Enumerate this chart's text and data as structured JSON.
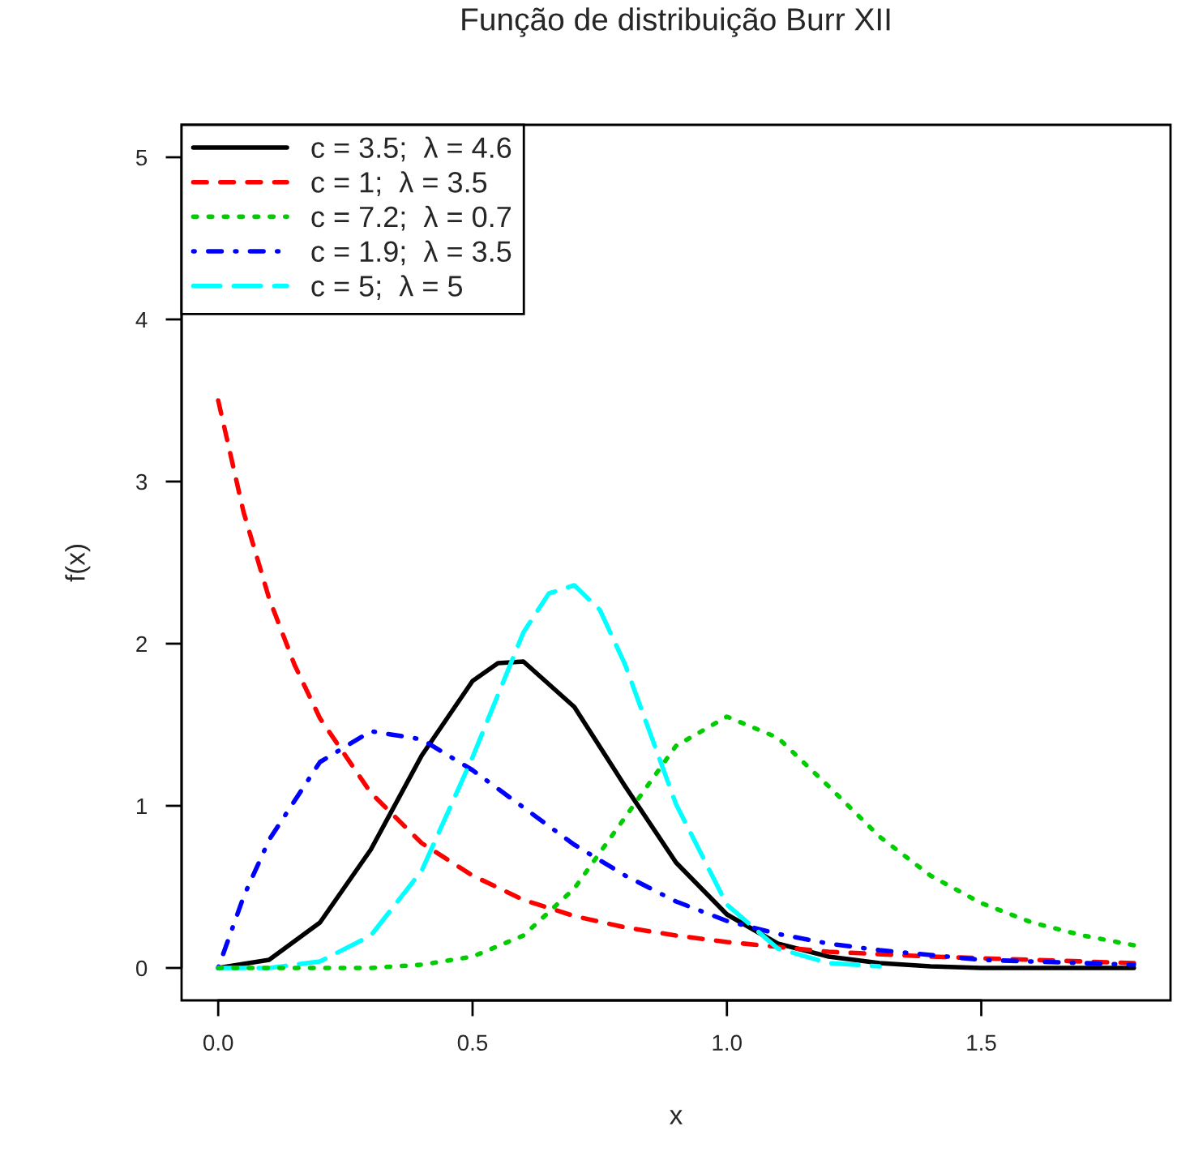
{
  "chart_data": {
    "type": "line",
    "title": "Função de distribuição Burr XII",
    "xlabel": "x",
    "ylabel": "f(x)",
    "xlim": [
      -0.072,
      1.872
    ],
    "ylim": [
      -0.2,
      5.2
    ],
    "xticks": [
      {
        "value": 0,
        "label": "0.0"
      },
      {
        "value": 0.5,
        "label": "0.5"
      },
      {
        "value": 1,
        "label": "1.0"
      },
      {
        "value": 1.5,
        "label": "1.5"
      }
    ],
    "yticks": [
      0,
      1,
      2,
      3,
      4,
      5
    ],
    "grid": false,
    "legend": "top left",
    "marker": "none",
    "series": [
      {
        "name": "c = 3.5;  λ = 4.6",
        "color": "#000000",
        "line_style": "solid",
        "x": [
          0,
          0.1,
          0.2,
          0.3,
          0.4,
          0.5,
          0.55,
          0.6,
          0.7,
          0.8,
          0.9,
          1.0,
          1.1,
          1.2,
          1.3,
          1.4,
          1.5,
          1.6,
          1.7,
          1.8
        ],
        "values": [
          0,
          0.05,
          0.28,
          0.73,
          1.31,
          1.77,
          1.88,
          1.89,
          1.61,
          1.12,
          0.65,
          0.33,
          0.15,
          0.07,
          0.03,
          0.01,
          0.0,
          0.0,
          0.0,
          0.0
        ]
      },
      {
        "name": "c = 1;  λ = 3.5",
        "color": "#ff0000",
        "line_style": "dashed",
        "x": [
          0,
          0.05,
          0.1,
          0.15,
          0.2,
          0.3,
          0.4,
          0.5,
          0.6,
          0.7,
          0.8,
          0.9,
          1.0,
          1.2,
          1.4,
          1.6,
          1.8
        ],
        "values": [
          3.5,
          2.81,
          2.28,
          1.87,
          1.54,
          1.08,
          0.77,
          0.57,
          0.42,
          0.32,
          0.25,
          0.2,
          0.16,
          0.1,
          0.07,
          0.05,
          0.03
        ]
      },
      {
        "name": "c = 7.2;  λ = 0.7",
        "color": "#00cd00",
        "line_style": "dotted",
        "x": [
          0,
          0.3,
          0.4,
          0.5,
          0.6,
          0.7,
          0.8,
          0.9,
          1.0,
          1.1,
          1.2,
          1.3,
          1.4,
          1.5,
          1.6,
          1.7,
          1.8
        ],
        "values": [
          0,
          0.0,
          0.02,
          0.07,
          0.2,
          0.49,
          0.93,
          1.37,
          1.55,
          1.42,
          1.12,
          0.81,
          0.57,
          0.4,
          0.28,
          0.2,
          0.14
        ]
      },
      {
        "name": "c = 1.9;  λ = 3.5",
        "color": "#0000ff",
        "line_style": "dashdot",
        "x": [
          0,
          0.05,
          0.1,
          0.2,
          0.3,
          0.4,
          0.5,
          0.6,
          0.7,
          0.8,
          0.9,
          1.0,
          1.1,
          1.2,
          1.3,
          1.4,
          1.5,
          1.6,
          1.7,
          1.8
        ],
        "values": [
          0,
          0.44,
          0.79,
          1.27,
          1.46,
          1.41,
          1.22,
          0.99,
          0.76,
          0.57,
          0.41,
          0.29,
          0.21,
          0.15,
          0.11,
          0.08,
          0.05,
          0.04,
          0.03,
          0.02
        ]
      },
      {
        "name": "c = 5;  λ = 5",
        "color": "#00ffff",
        "line_style": "longdash",
        "x": [
          0,
          0.1,
          0.2,
          0.3,
          0.4,
          0.5,
          0.6,
          0.65,
          0.7,
          0.75,
          0.8,
          0.9,
          1.0,
          1.1,
          1.2,
          1.3
        ],
        "values": [
          0,
          0.0,
          0.04,
          0.2,
          0.6,
          1.3,
          2.07,
          2.31,
          2.36,
          2.21,
          1.87,
          1.01,
          0.39,
          0.12,
          0.03,
          0.01
        ]
      }
    ]
  }
}
